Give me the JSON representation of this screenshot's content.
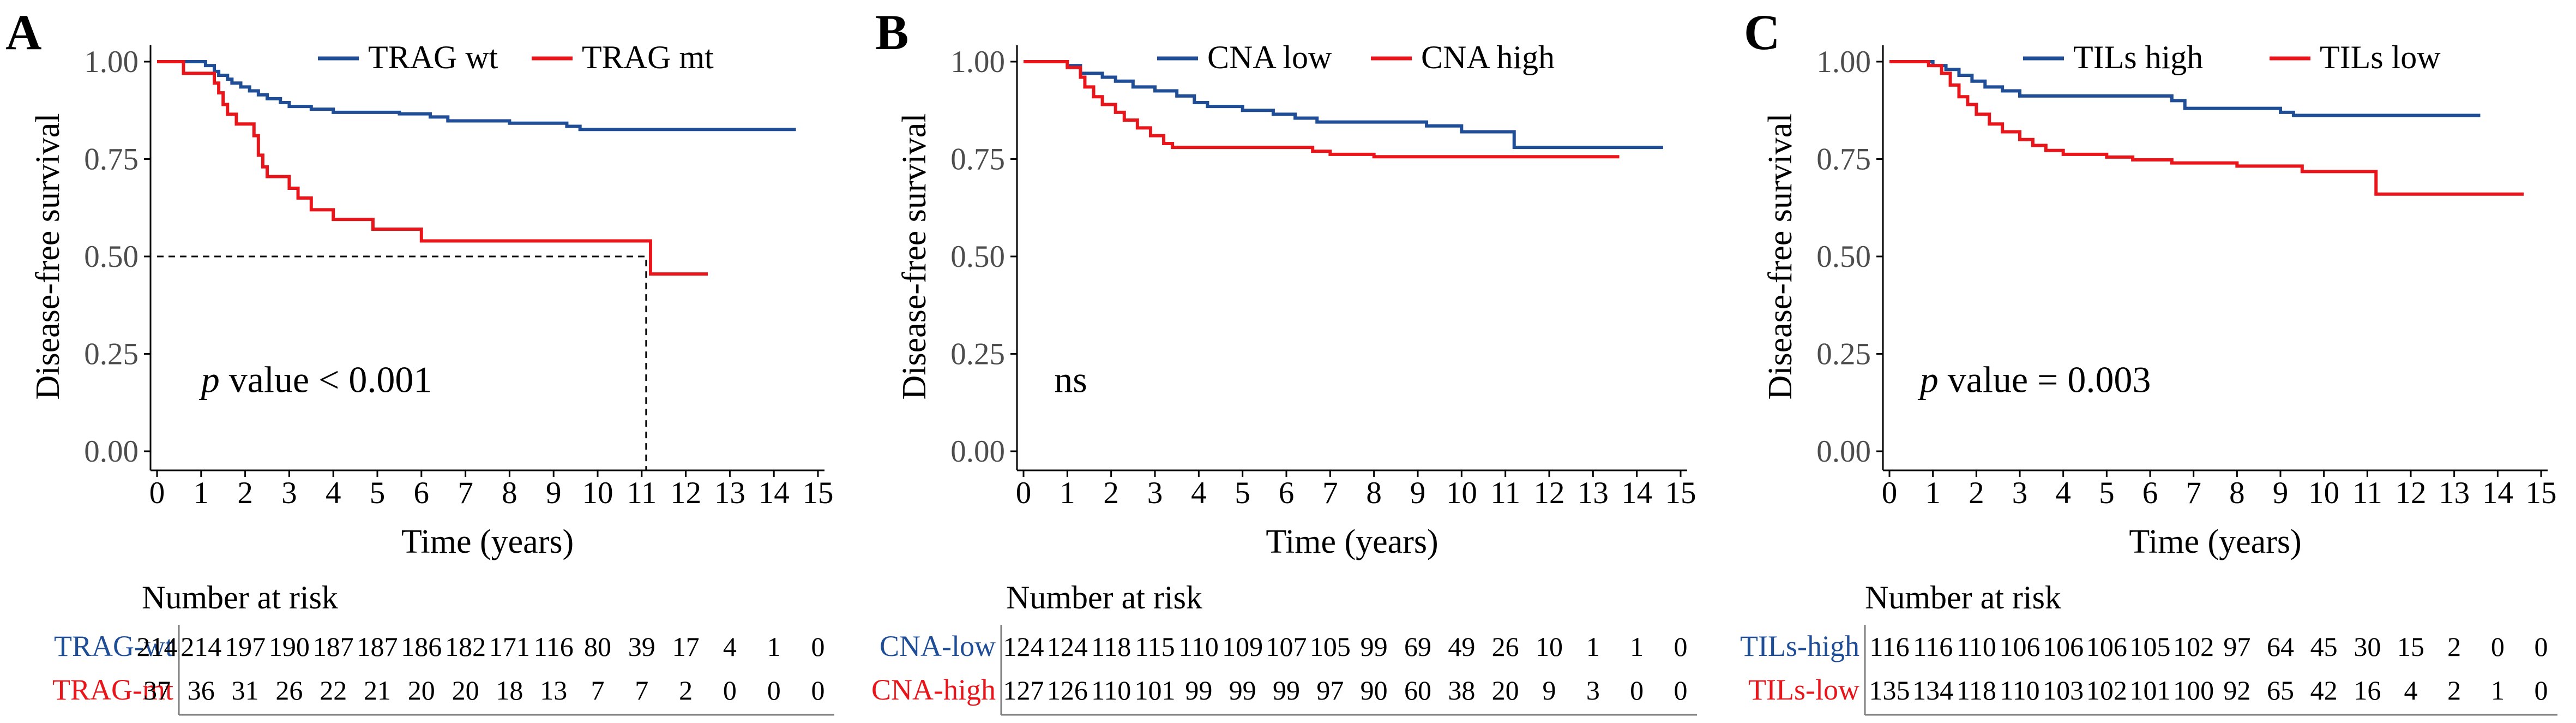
{
  "colors": {
    "blue": "#1F4E96",
    "red": "#E8161B",
    "axis": "#000000",
    "tick_text": "#4D4D4D",
    "table_rule": "#7F7F7F"
  },
  "chart_data": [
    {
      "panel_label": "A",
      "type": "line",
      "subtype": "kaplan-meier",
      "ylabel": "Disease-free survival",
      "xlabel": "Time (years)",
      "xlim": [
        0,
        15
      ],
      "ylim": [
        0,
        1
      ],
      "x_ticks": [
        "0",
        "1",
        "2",
        "3",
        "4",
        "5",
        "6",
        "7",
        "8",
        "9",
        "10",
        "11",
        "12",
        "13",
        "14",
        "15"
      ],
      "y_ticks": [
        "0.00",
        "0.25",
        "0.50",
        "0.75",
        "1.00"
      ],
      "annotation": {
        "italic": "p",
        "rest": " value < 0.001",
        "x": 1.0,
        "y": 0.18
      },
      "median_line": {
        "y": 0.5,
        "x": 11.1
      },
      "legend": [
        "TRAG wt",
        "TRAG mt"
      ],
      "series": [
        {
          "name": "TRAG wt",
          "color_key": "blue",
          "steps": [
            [
              0,
              1.0
            ],
            [
              1.1,
              0.99
            ],
            [
              1.3,
              0.975
            ],
            [
              1.4,
              0.965
            ],
            [
              1.6,
              0.955
            ],
            [
              1.7,
              0.945
            ],
            [
              1.9,
              0.935
            ],
            [
              2.1,
              0.925
            ],
            [
              2.3,
              0.915
            ],
            [
              2.5,
              0.905
            ],
            [
              2.8,
              0.895
            ],
            [
              3.0,
              0.885
            ],
            [
              3.5,
              0.878
            ],
            [
              4.0,
              0.87
            ],
            [
              5.5,
              0.866
            ],
            [
              6.2,
              0.858
            ],
            [
              6.6,
              0.848
            ],
            [
              8.0,
              0.842
            ],
            [
              9.3,
              0.834
            ],
            [
              9.6,
              0.826
            ],
            [
              14.5,
              0.826
            ]
          ]
        },
        {
          "name": "TRAG mt",
          "color_key": "red",
          "steps": [
            [
              0,
              1.0
            ],
            [
              0.6,
              0.97
            ],
            [
              1.3,
              0.945
            ],
            [
              1.4,
              0.92
            ],
            [
              1.5,
              0.89
            ],
            [
              1.6,
              0.865
            ],
            [
              1.8,
              0.84
            ],
            [
              2.2,
              0.81
            ],
            [
              2.3,
              0.76
            ],
            [
              2.4,
              0.73
            ],
            [
              2.5,
              0.705
            ],
            [
              3.0,
              0.675
            ],
            [
              3.2,
              0.65
            ],
            [
              3.5,
              0.62
            ],
            [
              4.0,
              0.595
            ],
            [
              4.9,
              0.57
            ],
            [
              6.0,
              0.54
            ],
            [
              11.2,
              0.455
            ],
            [
              12.5,
              0.455
            ]
          ]
        }
      ],
      "risk_table": {
        "title": "Number at risk",
        "rows": [
          {
            "label": "TRAG-wt",
            "color_key": "blue",
            "values": [
              "214",
              "214",
              "197",
              "190",
              "187",
              "187",
              "186",
              "182",
              "171",
              "116",
              "80",
              "39",
              "17",
              "4",
              "1",
              "0"
            ]
          },
          {
            "label": "TRAG-mt",
            "color_key": "red",
            "values": [
              "37",
              "36",
              "31",
              "26",
              "22",
              "21",
              "20",
              "20",
              "18",
              "13",
              "7",
              "7",
              "2",
              "0",
              "0",
              "0"
            ]
          }
        ]
      }
    },
    {
      "panel_label": "B",
      "type": "line",
      "subtype": "kaplan-meier",
      "ylabel": "Disease-free survival",
      "xlabel": "Time (years)",
      "xlim": [
        0,
        15
      ],
      "ylim": [
        0,
        1
      ],
      "x_ticks": [
        "0",
        "1",
        "2",
        "3",
        "4",
        "5",
        "6",
        "7",
        "8",
        "9",
        "10",
        "11",
        "12",
        "13",
        "14",
        "15"
      ],
      "y_ticks": [
        "0.00",
        "0.25",
        "0.50",
        "0.75",
        "1.00"
      ],
      "annotation": {
        "italic": "",
        "rest": "ns",
        "x": 0.7,
        "y": 0.18
      },
      "median_line": null,
      "legend": [
        "CNA low",
        "CNA high"
      ],
      "series": [
        {
          "name": "CNA low",
          "color_key": "blue",
          "steps": [
            [
              0,
              1.0
            ],
            [
              1.0,
              0.99
            ],
            [
              1.3,
              0.97
            ],
            [
              1.8,
              0.96
            ],
            [
              2.1,
              0.95
            ],
            [
              2.5,
              0.935
            ],
            [
              3.0,
              0.925
            ],
            [
              3.5,
              0.912
            ],
            [
              3.9,
              0.895
            ],
            [
              4.2,
              0.885
            ],
            [
              5.0,
              0.875
            ],
            [
              5.7,
              0.865
            ],
            [
              6.2,
              0.855
            ],
            [
              6.7,
              0.845
            ],
            [
              9.2,
              0.835
            ],
            [
              10.0,
              0.82
            ],
            [
              11.2,
              0.78
            ],
            [
              14.6,
              0.78
            ]
          ]
        },
        {
          "name": "CNA high",
          "color_key": "red",
          "steps": [
            [
              0,
              1.0
            ],
            [
              1.0,
              0.985
            ],
            [
              1.3,
              0.96
            ],
            [
              1.4,
              0.935
            ],
            [
              1.6,
              0.91
            ],
            [
              1.8,
              0.89
            ],
            [
              2.1,
              0.87
            ],
            [
              2.3,
              0.85
            ],
            [
              2.6,
              0.83
            ],
            [
              2.9,
              0.81
            ],
            [
              3.2,
              0.79
            ],
            [
              3.4,
              0.78
            ],
            [
              6.6,
              0.77
            ],
            [
              7.0,
              0.762
            ],
            [
              8.0,
              0.756
            ],
            [
              13.6,
              0.756
            ]
          ]
        }
      ],
      "risk_table": {
        "title": "Number at risk",
        "rows": [
          {
            "label": "CNA-low",
            "color_key": "blue",
            "values": [
              "124",
              "124",
              "118",
              "115",
              "110",
              "109",
              "107",
              "105",
              "99",
              "69",
              "49",
              "26",
              "10",
              "1",
              "1",
              "0"
            ]
          },
          {
            "label": "CNA-high",
            "color_key": "red",
            "values": [
              "127",
              "126",
              "110",
              "101",
              "99",
              "99",
              "99",
              "97",
              "90",
              "60",
              "38",
              "20",
              "9",
              "3",
              "0",
              "0"
            ]
          }
        ]
      }
    },
    {
      "panel_label": "C",
      "type": "line",
      "subtype": "kaplan-meier",
      "ylabel": "Disease-free survival",
      "xlabel": "Time (years)",
      "xlim": [
        0,
        15
      ],
      "ylim": [
        0,
        1
      ],
      "x_ticks": [
        "0",
        "1",
        "2",
        "3",
        "4",
        "5",
        "6",
        "7",
        "8",
        "9",
        "10",
        "11",
        "12",
        "13",
        "14",
        "15"
      ],
      "y_ticks": [
        "0.00",
        "0.25",
        "0.50",
        "0.75",
        "1.00"
      ],
      "annotation": {
        "italic": "p",
        "rest": " value = 0.003",
        "x": 0.7,
        "y": 0.18
      },
      "median_line": null,
      "legend": [
        "TILs high",
        "TILs low"
      ],
      "series": [
        {
          "name": "TILs high",
          "color_key": "blue",
          "steps": [
            [
              0,
              1.0
            ],
            [
              1.0,
              0.99
            ],
            [
              1.3,
              0.98
            ],
            [
              1.6,
              0.965
            ],
            [
              1.9,
              0.95
            ],
            [
              2.2,
              0.935
            ],
            [
              2.6,
              0.925
            ],
            [
              3.0,
              0.912
            ],
            [
              6.5,
              0.9
            ],
            [
              6.8,
              0.88
            ],
            [
              9.0,
              0.87
            ],
            [
              9.3,
              0.862
            ],
            [
              13.6,
              0.862
            ]
          ]
        },
        {
          "name": "TILs low",
          "color_key": "red",
          "steps": [
            [
              0,
              1.0
            ],
            [
              0.9,
              0.99
            ],
            [
              1.2,
              0.97
            ],
            [
              1.4,
              0.94
            ],
            [
              1.6,
              0.91
            ],
            [
              1.8,
              0.89
            ],
            [
              2.0,
              0.865
            ],
            [
              2.3,
              0.84
            ],
            [
              2.6,
              0.82
            ],
            [
              3.0,
              0.8
            ],
            [
              3.3,
              0.785
            ],
            [
              3.6,
              0.772
            ],
            [
              4.0,
              0.762
            ],
            [
              5.0,
              0.755
            ],
            [
              5.6,
              0.748
            ],
            [
              6.5,
              0.74
            ],
            [
              8.0,
              0.732
            ],
            [
              9.5,
              0.718
            ],
            [
              11.2,
              0.66
            ],
            [
              14.6,
              0.66
            ]
          ]
        }
      ],
      "risk_table": {
        "title": "Number at risk",
        "rows": [
          {
            "label": "TILs-high",
            "color_key": "blue",
            "values": [
              "116",
              "116",
              "110",
              "106",
              "106",
              "106",
              "105",
              "102",
              "97",
              "64",
              "45",
              "30",
              "15",
              "2",
              "0",
              "0"
            ]
          },
          {
            "label": "TILs-low",
            "color_key": "red",
            "values": [
              "135",
              "134",
              "118",
              "110",
              "103",
              "102",
              "101",
              "100",
              "92",
              "65",
              "42",
              "16",
              "4",
              "2",
              "1",
              "0"
            ]
          }
        ]
      }
    }
  ]
}
